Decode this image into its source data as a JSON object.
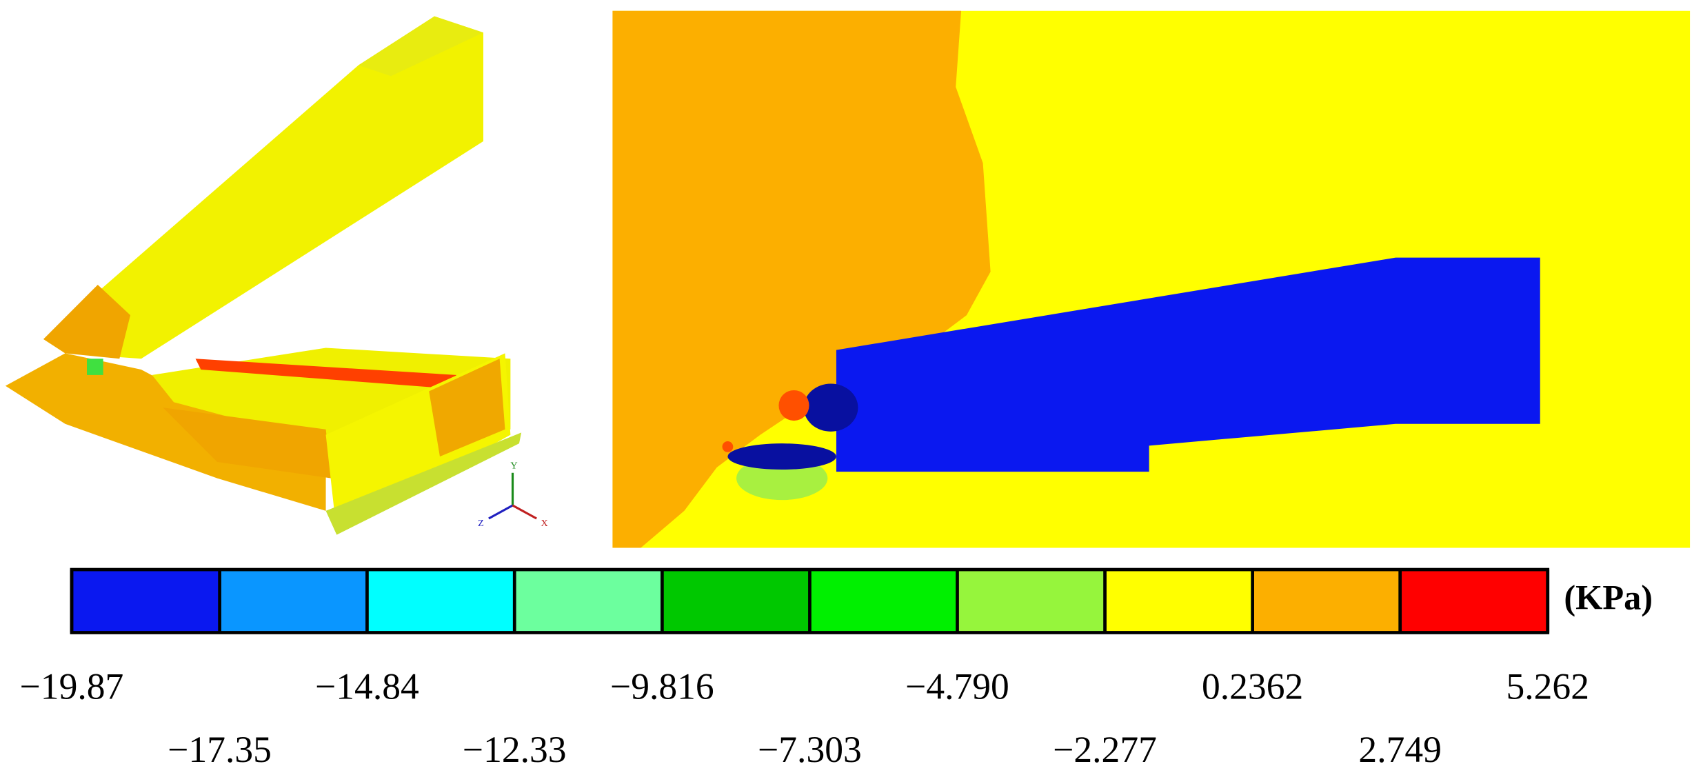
{
  "colorbar": {
    "unit": "(KPa)",
    "colors": [
      "#0a18f0",
      "#0a96ff",
      "#00ffff",
      "#6cff9e",
      "#00c800",
      "#00f000",
      "#96f53c",
      "#ffff00",
      "#fcaf00",
      "#ff0000"
    ],
    "ticks": [
      {
        "value": -19.87,
        "label": "−19.87"
      },
      {
        "value": -17.35,
        "label": "−17.35"
      },
      {
        "value": -14.84,
        "label": "−14.84"
      },
      {
        "value": -12.33,
        "label": "−12.33"
      },
      {
        "value": -9.816,
        "label": "−9.816"
      },
      {
        "value": -7.303,
        "label": "−7.303"
      },
      {
        "value": -4.79,
        "label": "−4.790"
      },
      {
        "value": -2.277,
        "label": "−2.277"
      },
      {
        "value": 0.2362,
        "label": "0.2362"
      },
      {
        "value": 2.749,
        "label": "2.749"
      },
      {
        "value": 5.262,
        "label": "5.262"
      }
    ]
  },
  "triad": {
    "y": "Y",
    "z": "Z",
    "x": "X"
  }
}
